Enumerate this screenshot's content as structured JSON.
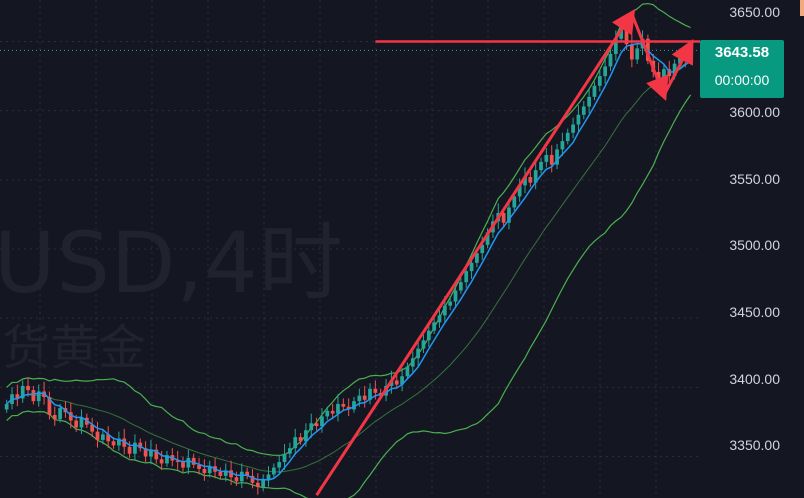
{
  "watermark": {
    "symbol": "USD,4时",
    "name": "货黄金"
  },
  "price_axis": {
    "ticks": [
      "3650.00",
      "3600.00",
      "3550.00",
      "3500.00",
      "3450.00",
      "3400.00",
      "3350.00"
    ]
  },
  "last_price": {
    "value": "3643.58",
    "countdown": "00:00:00",
    "color": "#089981"
  },
  "colors": {
    "background": "#141722",
    "bullish": "#26a69a",
    "bearish": "#ef5350",
    "ma": "#2196f3",
    "band": "#4caf50",
    "annotation": "#f23645"
  },
  "chart_data": {
    "type": "candlestick",
    "ylim": [
      3320,
      3680
    ],
    "closes": [
      3388,
      3395,
      3392,
      3401,
      3398,
      3390,
      3397,
      3393,
      3380,
      3377,
      3385,
      3382,
      3376,
      3371,
      3378,
      3373,
      3368,
      3362,
      3366,
      3361,
      3358,
      3363,
      3357,
      3352,
      3360,
      3356,
      3350,
      3355,
      3348,
      3345,
      3351,
      3347,
      3346,
      3342,
      3349,
      3344,
      3341,
      3338,
      3343,
      3339,
      3336,
      3340,
      3335,
      3332,
      3339,
      3336,
      3331,
      3328,
      3333,
      3337,
      3342,
      3346,
      3352,
      3356,
      3364,
      3361,
      3369,
      3374,
      3372,
      3379,
      3383,
      3381,
      3388,
      3386,
      3384,
      3390,
      3394,
      3391,
      3399,
      3396,
      3394,
      3401,
      3405,
      3402,
      3408,
      3415,
      3421,
      3428,
      3434,
      3441,
      3447,
      3452,
      3459,
      3462,
      3470,
      3476,
      3484,
      3490,
      3497,
      3503,
      3512,
      3520,
      3526,
      3519,
      3530,
      3538,
      3546,
      3552,
      3548,
      3557,
      3563,
      3568,
      3561,
      3572,
      3578,
      3584,
      3590,
      3597,
      3603,
      3610,
      3618,
      3625,
      3632,
      3641,
      3652,
      3660,
      3648,
      3637,
      3645,
      3652,
      3636,
      3628,
      3622,
      3630,
      3625,
      3634,
      3640,
      3637,
      3643.58
    ],
    "ma_period": 20,
    "bollinger": {
      "period": 20,
      "std_mult": 2
    },
    "annotations": [
      {
        "type": "arrow",
        "from": [
          58,
          3322
        ],
        "to": [
          117,
          3670
        ]
      },
      {
        "type": "arrow",
        "from": [
          117,
          3670
        ],
        "to": [
          123,
          3611
        ]
      },
      {
        "type": "arrow",
        "from": [
          123,
          3611
        ],
        "to": [
          128,
          3648
        ]
      },
      {
        "type": "hline",
        "y": 3650,
        "x_from": 69
      }
    ]
  }
}
